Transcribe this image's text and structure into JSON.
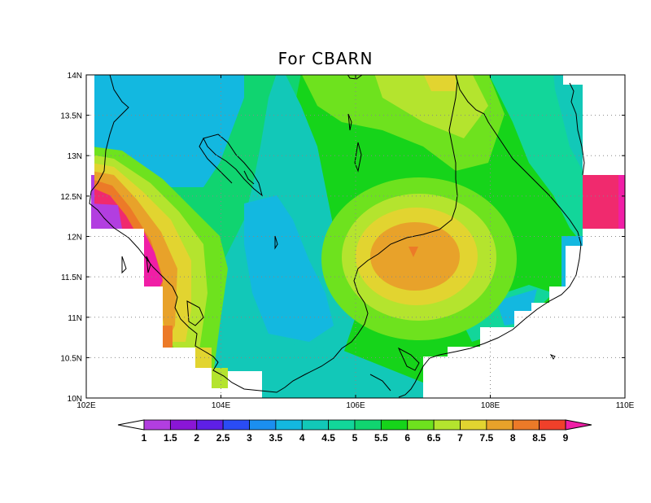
{
  "title": "For CBARN",
  "map": {
    "lat_labels": [
      "14N",
      "13.5N",
      "13N",
      "12.5N",
      "12N",
      "11.5N",
      "11N",
      "10.5N",
      "10N"
    ],
    "lon_labels": [
      "102E",
      "104E",
      "106E",
      "108E",
      "110E"
    ],
    "lat_range": [
      10,
      14
    ],
    "lon_range": [
      102,
      110
    ],
    "gridlines": "dotted"
  },
  "colorbar": {
    "labels": [
      "1",
      "1.5",
      "2",
      "2.5",
      "3",
      "3.5",
      "4",
      "4.5",
      "5",
      "5.5",
      "6",
      "6.5",
      "7",
      "7.5",
      "8",
      "8.5",
      "9"
    ],
    "colors": [
      "#ffffff",
      "#b23ee0",
      "#8a16d6",
      "#5e1fe6",
      "#2a4cf5",
      "#1b8ff0",
      "#13b8e0",
      "#12c8b8",
      "#12d69a",
      "#10d470",
      "#16d41a",
      "#6ee21e",
      "#b4e42e",
      "#e2d430",
      "#e8a22a",
      "#ec7a28",
      "#f0402a",
      "#f02a6e",
      "#f01ea6"
    ]
  }
}
